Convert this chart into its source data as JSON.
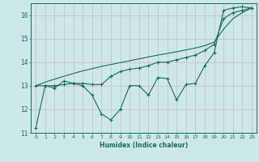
{
  "xlabel": "Humidex (Indice chaleur)",
  "background_color": "#cce8e8",
  "grid_color": "#c8dede",
  "line_color": "#1a6b60",
  "x_values": [
    0,
    1,
    2,
    3,
    4,
    5,
    6,
    7,
    8,
    9,
    10,
    11,
    12,
    13,
    14,
    15,
    16,
    17,
    18,
    19,
    20,
    21,
    22,
    23
  ],
  "line1_y": [
    11.2,
    13.0,
    12.9,
    13.2,
    13.1,
    13.0,
    12.6,
    11.8,
    11.55,
    12.0,
    13.0,
    13.0,
    12.6,
    13.35,
    13.3,
    12.4,
    13.05,
    13.1,
    13.85,
    14.4,
    16.2,
    16.3,
    16.35,
    16.3
  ],
  "line2_y": [
    13.0,
    13.0,
    13.0,
    13.05,
    13.1,
    13.1,
    13.05,
    13.05,
    13.4,
    13.6,
    13.7,
    13.75,
    13.85,
    14.0,
    14.0,
    14.1,
    14.2,
    14.3,
    14.5,
    14.75,
    15.85,
    16.1,
    16.2,
    16.3
  ],
  "line3_y": [
    13.0,
    13.15,
    13.28,
    13.4,
    13.52,
    13.63,
    13.72,
    13.82,
    13.9,
    13.98,
    14.06,
    14.14,
    14.22,
    14.3,
    14.37,
    14.44,
    14.52,
    14.6,
    14.7,
    14.85,
    15.4,
    15.85,
    16.1,
    16.3
  ],
  "ylim": [
    11.0,
    16.5
  ],
  "xlim": [
    -0.5,
    23.5
  ],
  "yticks": [
    11,
    12,
    13,
    14,
    15,
    16
  ],
  "xticks": [
    0,
    1,
    2,
    3,
    4,
    5,
    6,
    7,
    8,
    9,
    10,
    11,
    12,
    13,
    14,
    15,
    16,
    17,
    18,
    19,
    20,
    21,
    22,
    23
  ]
}
